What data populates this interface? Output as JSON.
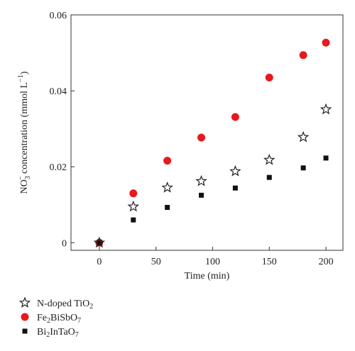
{
  "chart_data": {
    "type": "scatter",
    "title": "",
    "xlabel": "Time (min)",
    "ylabel_parts": {
      "main": "NO",
      "sub": "3",
      "sup": "−",
      "rest": " concentration (mmol L",
      "unit_sup": "−1",
      "close": ")"
    },
    "xlim": [
      -25,
      215
    ],
    "ylim": [
      -0.002,
      0.06
    ],
    "x_ticks": [
      0,
      50,
      100,
      150,
      200
    ],
    "x_tick_labels": [
      "0",
      "50",
      "100",
      "150",
      "200"
    ],
    "y_ticks": [
      0,
      0.02,
      0.04,
      0.06
    ],
    "y_tick_labels": [
      "0",
      "0.02",
      "0.04",
      "0.06"
    ],
    "grid": false,
    "legend_placement": "below",
    "series": [
      {
        "name_parts": [
          [
            "N-doped TiO",
            false
          ],
          [
            "2",
            true
          ]
        ],
        "marker": "star",
        "color": "#222222",
        "x": [
          0,
          30,
          60,
          90,
          120,
          150,
          180,
          200
        ],
        "y": [
          0.0,
          0.0095,
          0.0145,
          0.0162,
          0.0188,
          0.0218,
          0.0278,
          0.0351
        ]
      },
      {
        "name_parts": [
          [
            "Fe",
            false
          ],
          [
            "2",
            true
          ],
          [
            "BiSbO",
            false
          ],
          [
            "7",
            true
          ]
        ],
        "marker": "circle",
        "color": "#e8191c",
        "x": [
          0,
          30,
          60,
          90,
          120,
          150,
          180,
          200
        ],
        "y": [
          0.0,
          0.013,
          0.0216,
          0.0277,
          0.0331,
          0.0435,
          0.0494,
          0.0527
        ]
      },
      {
        "name_parts": [
          [
            "Bi",
            false
          ],
          [
            "2",
            true
          ],
          [
            "InTaO",
            false
          ],
          [
            "7",
            true
          ]
        ],
        "marker": "square",
        "color": "#111111",
        "x": [
          0,
          30,
          60,
          90,
          120,
          150,
          180,
          200
        ],
        "y": [
          0.0,
          0.006,
          0.0093,
          0.0125,
          0.0144,
          0.0172,
          0.0197,
          0.0223
        ]
      }
    ]
  }
}
